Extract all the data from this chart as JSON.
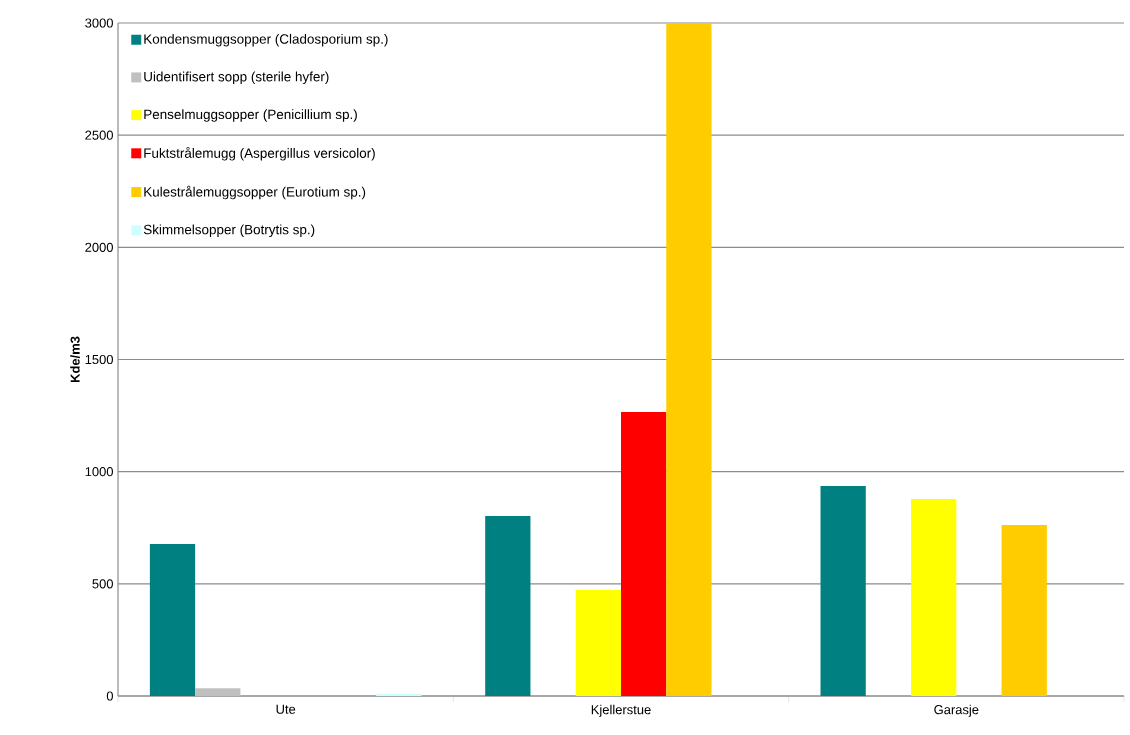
{
  "chart_data": {
    "type": "bar",
    "ylabel": "Kde/m3",
    "categories": [
      "Ute",
      "Kjellerstue",
      "Garasje"
    ],
    "series": [
      {
        "name": "Kondensmuggsopper (Cladosporium sp.)",
        "color": "#008080",
        "values": [
          678,
          802,
          936
        ]
      },
      {
        "name": "Uidentifisert sopp (sterile hyfer)",
        "color": "#c0c0c0",
        "values": [
          35,
          null,
          null
        ]
      },
      {
        "name": "Penselmuggsopper (Penicillium sp.)",
        "color": "#ffff00",
        "values": [
          null,
          473,
          878
        ]
      },
      {
        "name": "Fuktstrålemugg (Aspergillus versicolor)",
        "color": "#ff0000",
        "values": [
          null,
          1266,
          null
        ]
      },
      {
        "name": "Kulestrålemuggsopper (Eurotium sp.)",
        "color": "#ffcc00",
        "values": [
          null,
          3000,
          762
        ]
      },
      {
        "name": "Skimmelsopper (Botrytis sp.)",
        "color": "#ccffff",
        "values": [
          10,
          null,
          null
        ]
      }
    ],
    "ylim": [
      0,
      3000
    ],
    "yticks": [
      0,
      500,
      1000,
      1500,
      2000,
      2500,
      3000
    ],
    "grid": "y",
    "legend": "top left"
  }
}
